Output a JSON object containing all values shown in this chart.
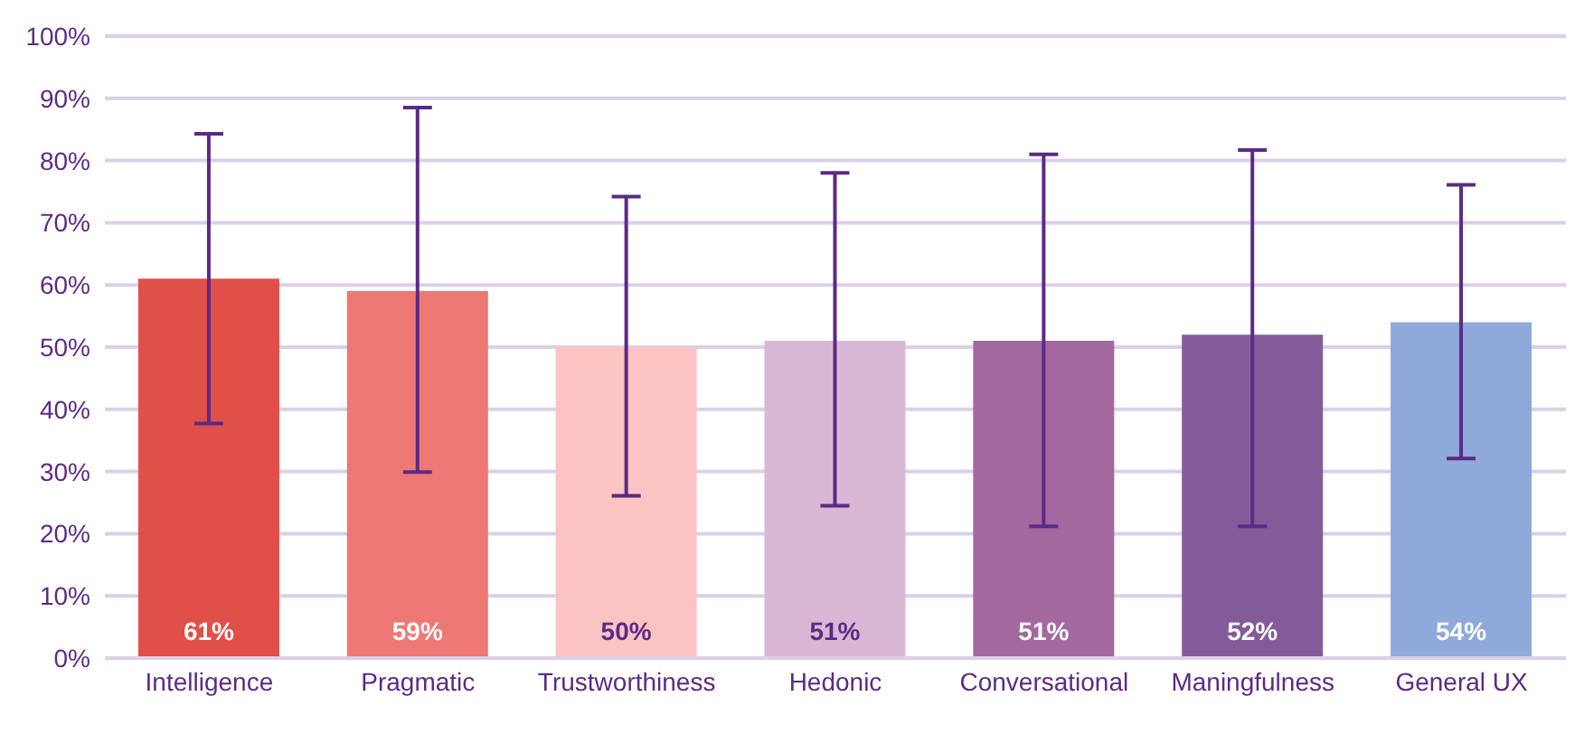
{
  "chart_data": {
    "type": "bar",
    "categories": [
      "Intelligence",
      "Pragmatic",
      "Trustworthiness",
      "Hedonic",
      "Conversational",
      "Maningfulness",
      "General UX"
    ],
    "values": [
      61,
      59,
      50,
      51,
      51,
      52,
      54
    ],
    "colors": [
      "#e05048",
      "#ee7873",
      "#fbc3c2",
      "#d9b8d6",
      "#a3699f",
      "#845b99",
      "#8fa9da"
    ],
    "value_labels": [
      "61%",
      "59%",
      "50%",
      "51%",
      "51%",
      "52%",
      "54%"
    ],
    "errors": [
      [
        37.7,
        84.3
      ],
      [
        29.9,
        88.5
      ],
      [
        26.1,
        74.2
      ],
      [
        24.5,
        78
      ],
      [
        21.2,
        81
      ],
      [
        21.2,
        81.7
      ],
      [
        32.1,
        76.1
      ]
    ],
    "ylim": [
      0,
      100
    ],
    "yticks": [
      {
        "value": 0,
        "label": "0%"
      },
      {
        "value": 10,
        "label": "10%"
      },
      {
        "value": 20,
        "label": "20%"
      },
      {
        "value": 30,
        "label": "30%"
      },
      {
        "value": 40,
        "label": "40%"
      },
      {
        "value": 50,
        "label": "50%"
      },
      {
        "value": 60,
        "label": "60%"
      },
      {
        "value": 70,
        "label": "70%"
      },
      {
        "value": 80,
        "label": "80%"
      },
      {
        "value": 90,
        "label": "90%"
      },
      {
        "value": 100,
        "label": "100%"
      }
    ],
    "grid": "y",
    "legend": false
  }
}
